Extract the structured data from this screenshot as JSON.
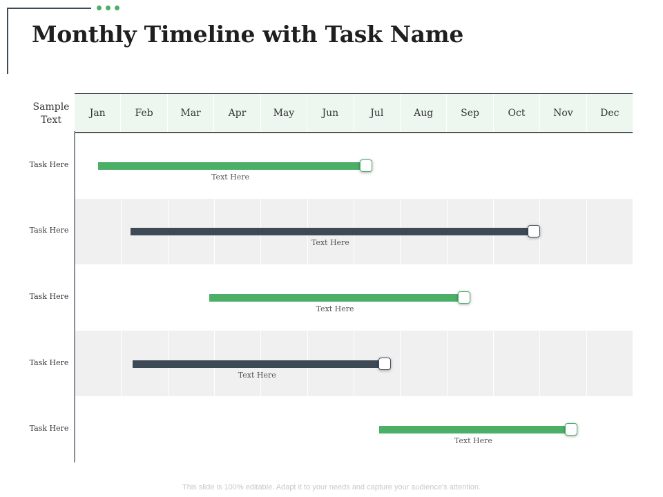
{
  "title": "Monthly Timeline with Task Name",
  "corner_label": "Sample Text",
  "months": [
    "Jan",
    "Feb",
    "Mar",
    "Apr",
    "May",
    "Jun",
    "Jul",
    "Aug",
    "Sep",
    "Oct",
    "Nov",
    "Dec"
  ],
  "tasks": [
    {
      "label": "Task Here",
      "note": "Text Here",
      "start_month": 0.5,
      "end_month": 6.2,
      "color": "green"
    },
    {
      "label": "Task Here",
      "note": "Text Here",
      "start_month": 1.2,
      "end_month": 9.8,
      "color": "dark"
    },
    {
      "label": "Task Here",
      "note": "Text Here",
      "start_month": 2.9,
      "end_month": 8.3,
      "color": "green"
    },
    {
      "label": "Task Here",
      "note": "Text Here",
      "start_month": 1.25,
      "end_month": 6.6,
      "color": "dark"
    },
    {
      "label": "Task Here",
      "note": "Text Here",
      "start_month": 6.55,
      "end_month": 10.6,
      "color": "green"
    }
  ],
  "colors": {
    "green": "#4caf68",
    "dark": "#3d4a55",
    "header_bg": "#edf7ef",
    "dots": "#4caf68"
  },
  "footer": "This slide is 100% editable. Adapt it to your needs and capture your audience's attention."
}
